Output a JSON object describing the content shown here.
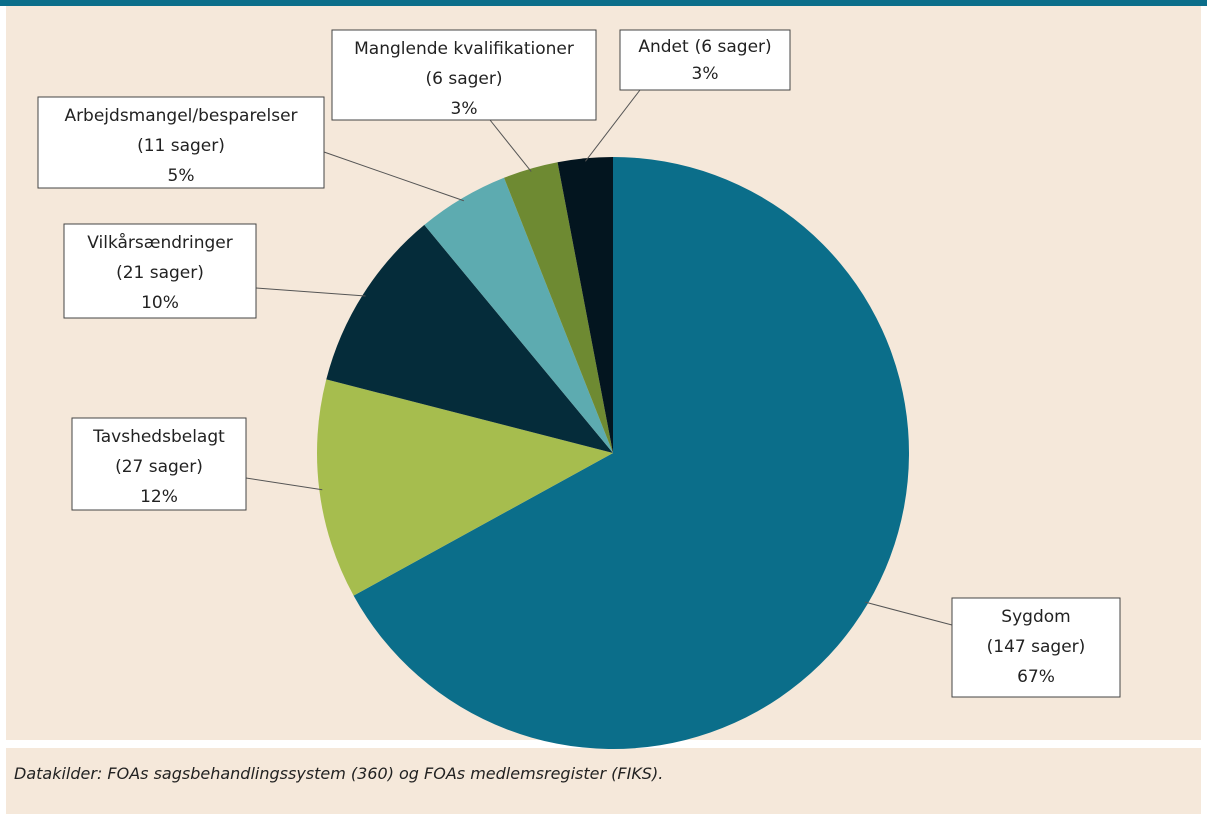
{
  "chart_data": {
    "type": "pie",
    "categories": [
      "Sygdom",
      "Tavshedsbelagt",
      "Vilkårsændringer",
      "Arbejdsmangel/besparelser",
      "Manglende kvalifikationer",
      "Andet"
    ],
    "count_labels": [
      "(147 sager)",
      "(27 sager)",
      "(21 sager)",
      "(11 sager)",
      "(6 sager)",
      "(6 sager)"
    ],
    "values": [
      67,
      12,
      10,
      5,
      3,
      3
    ],
    "value_labels": [
      "67%",
      "12%",
      "10%",
      "5%",
      "3%",
      "3%"
    ],
    "colors": [
      "#0b6e8a",
      "#a6bd4e",
      "#052c3a",
      "#5dabb0",
      "#6e8a32",
      "#03151f"
    ],
    "source": "Datakilder: FOAs sagsbehandlingssystem (360) og FOAs medlemsregister (FIKS)."
  }
}
